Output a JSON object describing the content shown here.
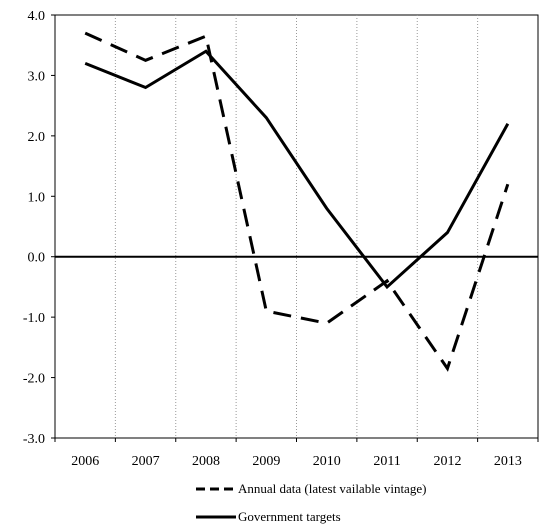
{
  "chart_data": {
    "type": "line",
    "categories": [
      "2006",
      "2007",
      "2008",
      "2009",
      "2010",
      "2011",
      "2012",
      "2013"
    ],
    "ylim": [
      -3.0,
      4.0
    ],
    "yticks": [
      "-3.0",
      "-2.0",
      "-1.0",
      "0.0",
      "1.0",
      "2.0",
      "3.0",
      "4.0"
    ],
    "grid": "vertical",
    "legend_position": "bottom",
    "series": [
      {
        "name": "Annual data (latest vailable vintage)",
        "style": "dashed",
        "color": "#000000",
        "values": [
          3.7,
          3.25,
          3.65,
          -0.9,
          -1.1,
          -0.4,
          -1.85,
          1.2
        ]
      },
      {
        "name": "Government targets",
        "style": "solid",
        "color": "#000000",
        "values": [
          3.2,
          2.8,
          3.4,
          2.3,
          0.8,
          -0.5,
          0.4,
          2.2
        ]
      }
    ]
  }
}
